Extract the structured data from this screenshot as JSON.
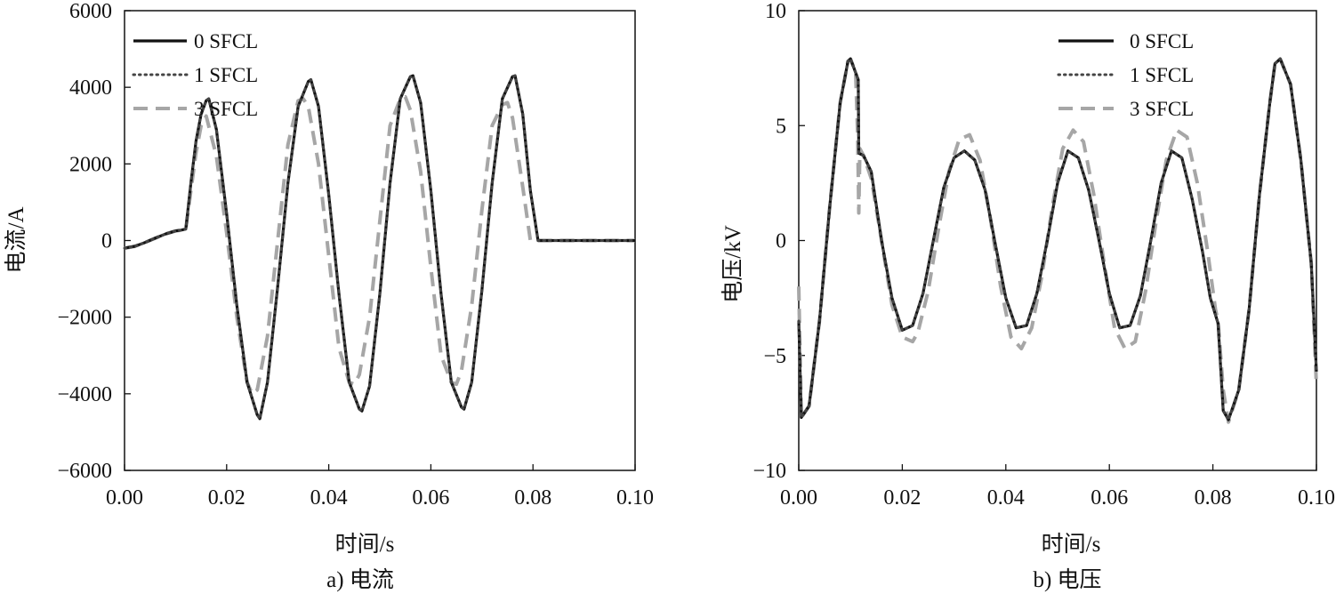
{
  "chart_data": [
    {
      "type": "line",
      "caption": "a) 电流",
      "xlabel": "时间/s",
      "ylabel": "电流/A",
      "xlim": [
        0,
        0.1
      ],
      "ylim": [
        -6000,
        6000
      ],
      "xticks": [
        "0.00",
        "0.02",
        "0.04",
        "0.06",
        "0.08",
        "0.10"
      ],
      "xtick_values": [
        0,
        0.02,
        0.04,
        0.06,
        0.08,
        0.1
      ],
      "yticks": [
        "−6000",
        "−4000",
        "−2000",
        "0",
        "2000",
        "4000",
        "6000"
      ],
      "ytick_values": [
        -6000,
        -4000,
        -2000,
        0,
        2000,
        4000,
        6000
      ],
      "grid": false,
      "legend_position": "top-left",
      "series": [
        {
          "name": "0 SFCL",
          "style": "solid",
          "color": "#111111",
          "x": [
            0,
            0.002,
            0.004,
            0.006,
            0.008,
            0.01,
            0.011,
            0.012,
            0.013,
            0.014,
            0.015,
            0.016,
            0.0165,
            0.018,
            0.02,
            0.022,
            0.024,
            0.026,
            0.0265,
            0.028,
            0.03,
            0.032,
            0.034,
            0.036,
            0.0365,
            0.038,
            0.04,
            0.042,
            0.044,
            0.046,
            0.0465,
            0.048,
            0.05,
            0.052,
            0.054,
            0.056,
            0.0565,
            0.058,
            0.06,
            0.062,
            0.064,
            0.066,
            0.0665,
            0.068,
            0.07,
            0.072,
            0.074,
            0.076,
            0.0765,
            0.078,
            0.0795,
            0.081,
            0.085,
            0.09,
            0.095,
            0.1
          ],
          "values": [
            -200,
            -150,
            -50,
            60,
            170,
            250,
            270,
            300,
            1500,
            2600,
            3300,
            3650,
            3700,
            2900,
            700,
            -1700,
            -3700,
            -4550,
            -4650,
            -3700,
            -1200,
            1500,
            3500,
            4150,
            4200,
            3500,
            1200,
            -1400,
            -3700,
            -4400,
            -4450,
            -3800,
            -1400,
            1500,
            3700,
            4280,
            4300,
            3600,
            1300,
            -1400,
            -3700,
            -4350,
            -4400,
            -3700,
            -1300,
            1500,
            3700,
            4280,
            4300,
            3300,
            1300,
            0,
            0,
            0,
            0,
            0
          ]
        },
        {
          "name": "1 SFCL",
          "style": "dotted",
          "color": "#444444",
          "x": [
            0,
            0.002,
            0.004,
            0.006,
            0.008,
            0.01,
            0.011,
            0.012,
            0.013,
            0.014,
            0.015,
            0.016,
            0.0165,
            0.018,
            0.02,
            0.022,
            0.024,
            0.026,
            0.0265,
            0.028,
            0.03,
            0.032,
            0.034,
            0.036,
            0.0365,
            0.038,
            0.04,
            0.042,
            0.044,
            0.046,
            0.0465,
            0.048,
            0.05,
            0.052,
            0.054,
            0.056,
            0.0565,
            0.058,
            0.06,
            0.062,
            0.064,
            0.066,
            0.0665,
            0.068,
            0.07,
            0.072,
            0.074,
            0.076,
            0.0765,
            0.078,
            0.0795,
            0.081,
            0.085,
            0.09,
            0.095,
            0.1
          ],
          "values": [
            -200,
            -150,
            -50,
            60,
            170,
            250,
            270,
            300,
            1500,
            2600,
            3300,
            3650,
            3700,
            2900,
            700,
            -1700,
            -3700,
            -4550,
            -4650,
            -3700,
            -1200,
            1500,
            3500,
            4150,
            4200,
            3500,
            1200,
            -1400,
            -3700,
            -4400,
            -4450,
            -3800,
            -1400,
            1500,
            3700,
            4280,
            4300,
            3600,
            1300,
            -1400,
            -3700,
            -4350,
            -4400,
            -3700,
            -1300,
            1500,
            3700,
            4280,
            4300,
            3300,
            1300,
            0,
            0,
            0,
            0,
            0
          ]
        },
        {
          "name": "3 SFCL",
          "style": "dashed",
          "color": "#a6a6a6",
          "x": [
            0,
            0.002,
            0.004,
            0.006,
            0.008,
            0.01,
            0.011,
            0.012,
            0.013,
            0.014,
            0.015,
            0.016,
            0.018,
            0.02,
            0.022,
            0.024,
            0.025,
            0.026,
            0.028,
            0.03,
            0.032,
            0.034,
            0.035,
            0.036,
            0.038,
            0.04,
            0.042,
            0.044,
            0.045,
            0.046,
            0.048,
            0.05,
            0.052,
            0.054,
            0.055,
            0.056,
            0.058,
            0.06,
            0.062,
            0.064,
            0.065,
            0.066,
            0.068,
            0.07,
            0.072,
            0.074,
            0.075,
            0.076,
            0.078,
            0.0795,
            0.085,
            0.09,
            0.095,
            0.1
          ],
          "values": [
            -200,
            -150,
            -50,
            60,
            170,
            250,
            270,
            300,
            1300,
            2300,
            3000,
            3250,
            2200,
            200,
            -2000,
            -3700,
            -4000,
            -3900,
            -2500,
            0,
            2500,
            3650,
            3700,
            3500,
            2000,
            -400,
            -2800,
            -3700,
            -3750,
            -3500,
            -2000,
            500,
            3000,
            3700,
            3750,
            3400,
            1800,
            -700,
            -3000,
            -3700,
            -3750,
            -3400,
            -1700,
            800,
            3000,
            3550,
            3600,
            3200,
            1400,
            0,
            0,
            0,
            0,
            0
          ]
        }
      ]
    },
    {
      "type": "line",
      "caption": "b) 电压",
      "xlabel": "时间/s",
      "ylabel": "电压/kV",
      "xlim": [
        0,
        0.1
      ],
      "ylim": [
        -10,
        10
      ],
      "xticks": [
        "0.00",
        "0.02",
        "0.04",
        "0.06",
        "0.08",
        "0.10"
      ],
      "xtick_values": [
        0,
        0.02,
        0.04,
        0.06,
        0.08,
        0.1
      ],
      "yticks": [
        "−10",
        "−5",
        "0",
        "5",
        "10"
      ],
      "ytick_values": [
        -10,
        -5,
        0,
        5,
        10
      ],
      "grid": false,
      "legend_position": "top-right",
      "series": [
        {
          "name": "0 SFCL",
          "style": "solid",
          "color": "#111111",
          "x": [
            0,
            0.0005,
            0.002,
            0.004,
            0.006,
            0.008,
            0.0095,
            0.01,
            0.0105,
            0.011,
            0.0115,
            0.0116,
            0.0125,
            0.014,
            0.016,
            0.018,
            0.02,
            0.022,
            0.024,
            0.026,
            0.028,
            0.03,
            0.032,
            0.034,
            0.036,
            0.038,
            0.04,
            0.042,
            0.044,
            0.046,
            0.048,
            0.05,
            0.052,
            0.054,
            0.056,
            0.058,
            0.06,
            0.062,
            0.064,
            0.066,
            0.068,
            0.07,
            0.072,
            0.074,
            0.076,
            0.078,
            0.0795,
            0.081,
            0.082,
            0.083,
            0.085,
            0.087,
            0.089,
            0.091,
            0.092,
            0.093,
            0.095,
            0.097,
            0.099,
            0.1
          ],
          "values": [
            -3.5,
            -7.7,
            -7.2,
            -3.5,
            1.5,
            6,
            7.8,
            7.9,
            7.6,
            7.3,
            7.0,
            3.8,
            3.7,
            3.0,
            0,
            -2.5,
            -3.9,
            -3.7,
            -2.3,
            0,
            2.3,
            3.6,
            3.9,
            3.5,
            2.2,
            -0.2,
            -2.5,
            -3.8,
            -3.7,
            -2.3,
            0,
            2.5,
            3.9,
            3.6,
            2.2,
            0,
            -2.3,
            -3.8,
            -3.7,
            -2.4,
            0,
            2.5,
            3.9,
            3.6,
            1.8,
            -0.5,
            -2.5,
            -3.6,
            -7.4,
            -7.8,
            -6.5,
            -3,
            2,
            6,
            7.7,
            7.9,
            6.8,
            3.5,
            -1,
            -5.7
          ]
        },
        {
          "name": "1 SFCL",
          "style": "dotted",
          "color": "#444444",
          "x": [
            0,
            0.0005,
            0.002,
            0.004,
            0.006,
            0.008,
            0.0095,
            0.01,
            0.0105,
            0.011,
            0.0115,
            0.0116,
            0.0125,
            0.014,
            0.016,
            0.018,
            0.02,
            0.022,
            0.024,
            0.026,
            0.028,
            0.03,
            0.032,
            0.034,
            0.036,
            0.038,
            0.04,
            0.042,
            0.044,
            0.046,
            0.048,
            0.05,
            0.052,
            0.054,
            0.056,
            0.058,
            0.06,
            0.062,
            0.064,
            0.066,
            0.068,
            0.07,
            0.072,
            0.074,
            0.076,
            0.078,
            0.0795,
            0.081,
            0.082,
            0.083,
            0.085,
            0.087,
            0.089,
            0.091,
            0.092,
            0.093,
            0.095,
            0.097,
            0.099,
            0.1
          ],
          "values": [
            -3.5,
            -7.7,
            -7.2,
            -3.5,
            1.5,
            6,
            7.8,
            7.9,
            7.6,
            7.3,
            7.0,
            3.8,
            3.7,
            3.0,
            0,
            -2.5,
            -3.9,
            -3.7,
            -2.3,
            0,
            2.3,
            3.6,
            3.9,
            3.5,
            2.2,
            -0.2,
            -2.5,
            -3.8,
            -3.7,
            -2.3,
            0,
            2.5,
            3.9,
            3.6,
            2.2,
            0,
            -2.3,
            -3.8,
            -3.7,
            -2.4,
            0,
            2.5,
            3.9,
            3.6,
            1.8,
            -0.5,
            -2.5,
            -3.6,
            -7.4,
            -7.8,
            -6.5,
            -3,
            2,
            6,
            7.7,
            7.9,
            6.8,
            3.5,
            -1,
            -5.7
          ]
        },
        {
          "name": "3 SFCL",
          "style": "dashed",
          "color": "#a6a6a6",
          "x": [
            0,
            0.0005,
            0.002,
            0.004,
            0.006,
            0.008,
            0.0095,
            0.01,
            0.0105,
            0.011,
            0.0114,
            0.0116,
            0.0118,
            0.0125,
            0.014,
            0.016,
            0.018,
            0.02,
            0.022,
            0.023,
            0.025,
            0.027,
            0.029,
            0.031,
            0.033,
            0.035,
            0.037,
            0.039,
            0.041,
            0.043,
            0.045,
            0.047,
            0.049,
            0.051,
            0.053,
            0.055,
            0.057,
            0.059,
            0.061,
            0.063,
            0.065,
            0.067,
            0.069,
            0.071,
            0.073,
            0.075,
            0.077,
            0.079,
            0.0805,
            0.081,
            0.082,
            0.083,
            0.085,
            0.087,
            0.089,
            0.091,
            0.092,
            0.093,
            0.095,
            0.097,
            0.099,
            0.1
          ],
          "values": [
            -2,
            -7.7,
            -7.2,
            -3.5,
            1.5,
            6,
            7.8,
            7.9,
            7.6,
            7.3,
            4.5,
            1.2,
            4.0,
            3.7,
            2.7,
            0,
            -2.8,
            -4.2,
            -4.4,
            -4.0,
            -2.2,
            0.5,
            3,
            4.4,
            4.6,
            3.5,
            1,
            -2,
            -4.2,
            -4.7,
            -3.8,
            -1.5,
            1.5,
            4,
            4.8,
            4.3,
            2,
            -1,
            -3.8,
            -4.7,
            -4.4,
            -2.2,
            0.8,
            3.5,
            4.8,
            4.5,
            2.5,
            -0.5,
            -3,
            -3.5,
            -6.5,
            -7.9,
            -6.5,
            -3,
            2,
            6,
            7.7,
            7.9,
            6.8,
            3.5,
            -1,
            -6.3
          ]
        }
      ]
    }
  ]
}
